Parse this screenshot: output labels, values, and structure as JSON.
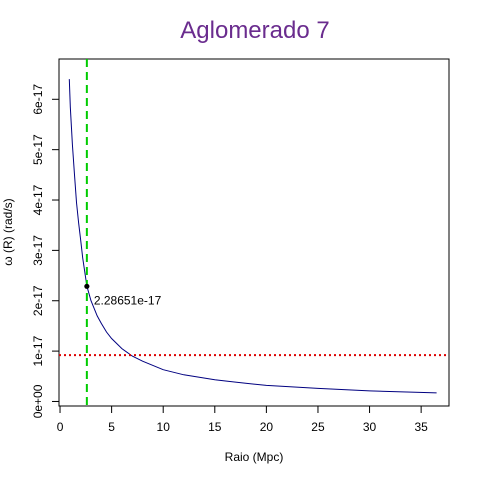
{
  "chart_data": {
    "type": "line",
    "title": "Aglomerado 7",
    "xlabel": "Raio (Mpc)",
    "ylabel": "ω (R) (rad/s)",
    "xlim": [
      0,
      37
    ],
    "ylim": [
      0,
      6.5e-17
    ],
    "xticks": [
      0,
      5,
      10,
      15,
      20,
      25,
      30,
      35
    ],
    "xtick_labels": [
      "0",
      "5",
      "10",
      "15",
      "20",
      "25",
      "30",
      "35"
    ],
    "yticks": [
      0,
      1e-17,
      2e-17,
      3e-17,
      4e-17,
      5e-17,
      6e-17
    ],
    "ytick_labels": [
      "0e+00",
      "1e-17",
      "2e-17",
      "3e-17",
      "4e-17",
      "5e-17",
      "6e-17"
    ],
    "series": [
      {
        "color": "#000080",
        "x": [
          0.9,
          1.0,
          1.2,
          1.4,
          1.6,
          1.8,
          2.0,
          2.2,
          2.6,
          3.0,
          3.3,
          3.6,
          4.0,
          4.5,
          5.0,
          6.0,
          7.0,
          8.0,
          10.0,
          12.0,
          15.0,
          18.0,
          20.0,
          25.0,
          30.0,
          36.5
        ],
        "y": [
          6.4e-17,
          5.85e-17,
          5.1e-17,
          4.5e-17,
          3.95e-17,
          3.55e-17,
          3.2e-17,
          2.85e-17,
          2.28651e-17,
          2e-17,
          1.85e-17,
          1.7e-17,
          1.55e-17,
          1.38e-17,
          1.25e-17,
          1.05e-17,
          9e-18,
          8e-18,
          6.3e-18,
          5.3e-18,
          4.3e-18,
          3.6e-18,
          3.2e-18,
          2.6e-18,
          2.1e-18,
          1.7e-18
        ]
      }
    ],
    "highlight_point": {
      "x": 2.6,
      "y": 2.28651e-17,
      "label": "2.28651e-17"
    },
    "vertical_line": {
      "x": 2.6,
      "color": "#00cc00",
      "style": "dashed"
    },
    "horizontal_line": {
      "y": 9.2e-18,
      "color": "#dd0000",
      "style": "dotted"
    },
    "grid": false,
    "legend": "none"
  }
}
